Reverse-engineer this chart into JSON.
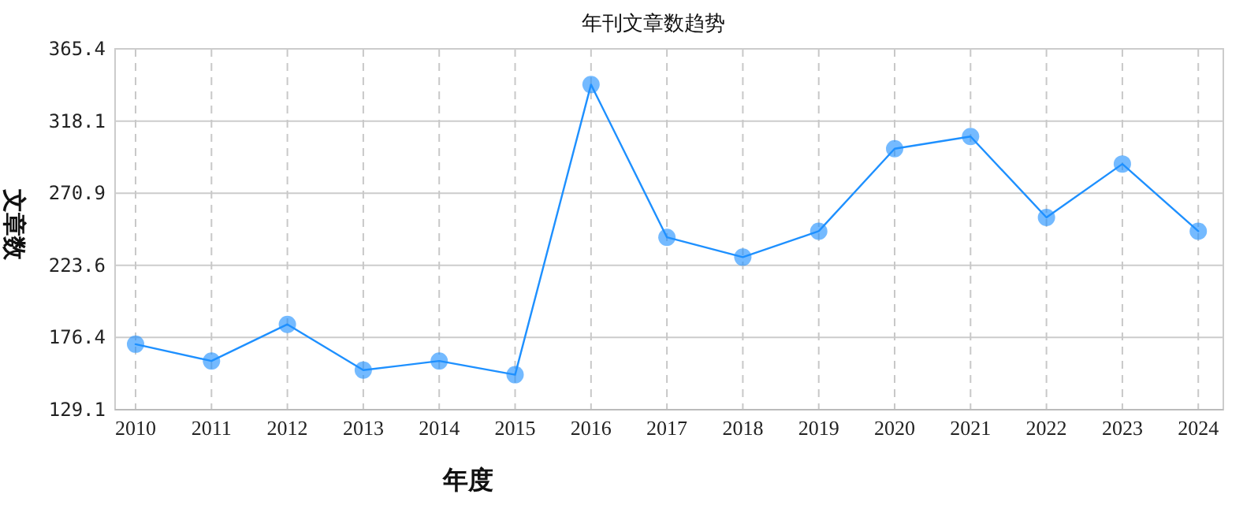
{
  "chart_data": {
    "type": "line",
    "title": "年刊文章数趋势",
    "xlabel": "年度",
    "ylabel": "文章数",
    "categories": [
      "2010",
      "2011",
      "2012",
      "2013",
      "2014",
      "2015",
      "2016",
      "2017",
      "2018",
      "2019",
      "2020",
      "2021",
      "2022",
      "2023",
      "2024"
    ],
    "series": [
      {
        "color": "#1e90ff",
        "values": [
          172,
          161,
          185,
          155,
          161,
          152,
          342,
          242,
          229,
          246,
          300,
          308,
          255,
          290,
          246
        ]
      }
    ],
    "ylim": [
      129.1,
      365.4
    ],
    "yticks": [
      129.1,
      176.4,
      223.6,
      270.9,
      318.1,
      365.4
    ],
    "grid": true,
    "marker": "circle",
    "line_style": "solid"
  }
}
